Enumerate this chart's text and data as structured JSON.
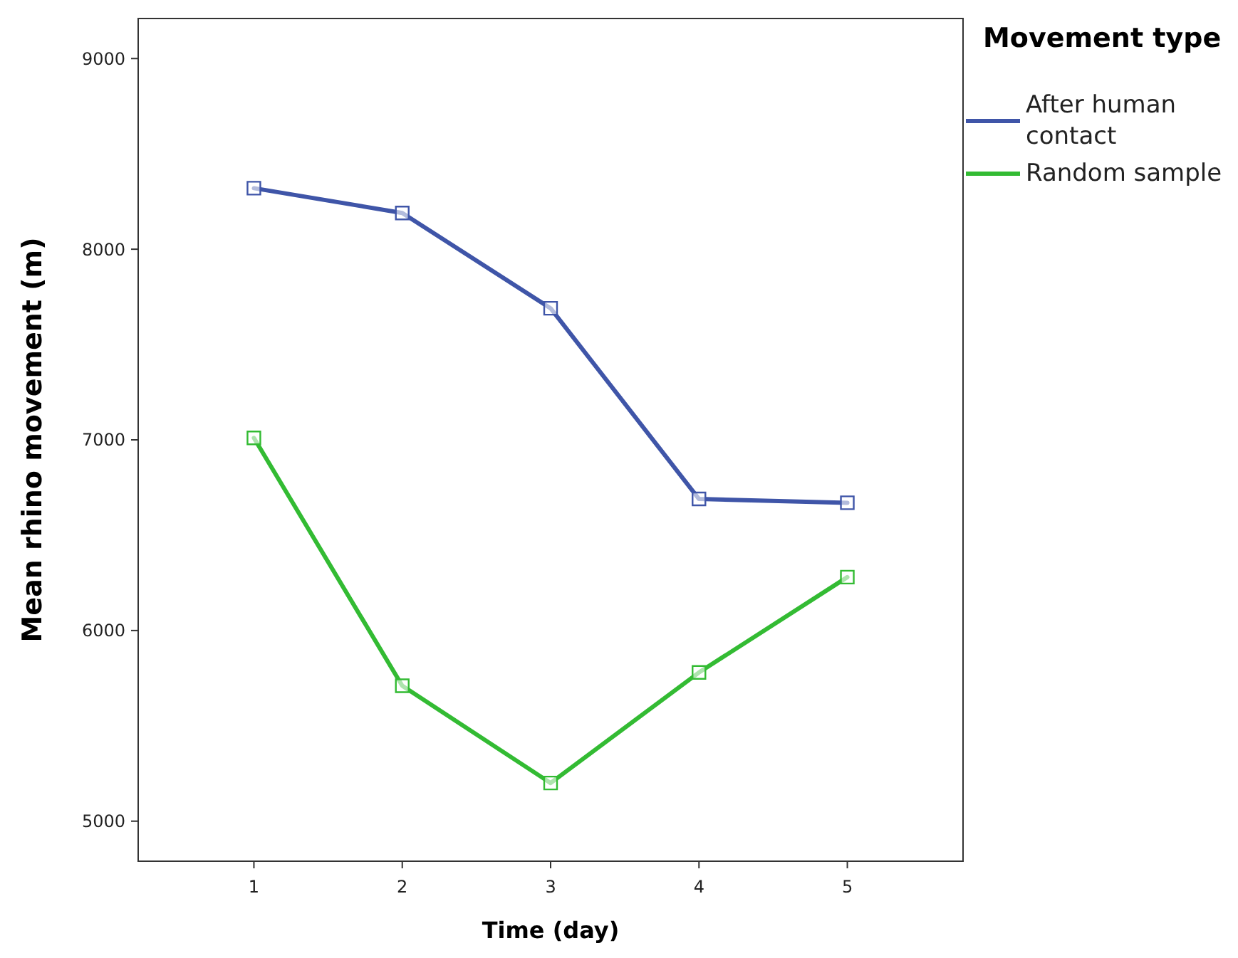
{
  "chart_data": {
    "type": "line",
    "xlabel": "Time (day)",
    "ylabel": "Mean rhino movement (m)",
    "legend_title": "Movement type",
    "x": [
      1,
      2,
      3,
      4,
      5
    ],
    "series": [
      {
        "name": "After human contact",
        "color": "#3f55a8",
        "values": [
          8320,
          8190,
          7690,
          6690,
          6670
        ]
      },
      {
        "name": "Random sample",
        "color": "#33bb33",
        "values": [
          7010,
          5710,
          5200,
          5780,
          6280
        ]
      }
    ],
    "xlim": [
      0.22,
      5.78
    ],
    "xticks": [
      1,
      2,
      3,
      4,
      5
    ],
    "ylim": [
      4790,
      9210
    ],
    "yticks": [
      5000,
      6000,
      7000,
      8000,
      9000
    ],
    "grid": false,
    "legend": "right",
    "marker": "square",
    "line_style": "solid"
  }
}
